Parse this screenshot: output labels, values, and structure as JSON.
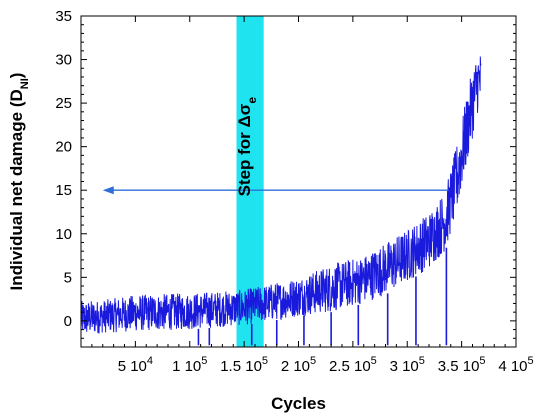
{
  "chart_data": {
    "type": "line",
    "xlabel": "Cycles",
    "ylabel": "Individual net damage (D",
    "ylabel_subscript": "NI",
    "ylabel_close": ")",
    "xlim": [
      0,
      400000
    ],
    "ylim": [
      -3,
      35
    ],
    "grid": false,
    "y_ticks": [
      0,
      5,
      10,
      15,
      20,
      25,
      30,
      35
    ],
    "x_ticks": [
      {
        "value": 50000,
        "mantissa": "5",
        "base": "10",
        "exp": "4"
      },
      {
        "value": 100000,
        "mantissa": "1",
        "base": "10",
        "exp": "5"
      },
      {
        "value": 150000,
        "mantissa": "1.5",
        "base": "10",
        "exp": "5"
      },
      {
        "value": 200000,
        "mantissa": "2",
        "base": "10",
        "exp": "5"
      },
      {
        "value": 250000,
        "mantissa": "2.5",
        "base": "10",
        "exp": "5"
      },
      {
        "value": 300000,
        "mantissa": "3",
        "base": "10",
        "exp": "5"
      },
      {
        "value": 350000,
        "mantissa": "3.5",
        "base": "10",
        "exp": "5"
      },
      {
        "value": 400000,
        "mantissa": "4",
        "base": "10",
        "exp": "5"
      }
    ],
    "band": {
      "x_start": 143000,
      "x_end": 168000,
      "color": "#1fe3ef",
      "label_prefix": "Step for ",
      "label_symbol": "Δσ",
      "label_subscript": "e"
    },
    "arrow": {
      "x_from": 338000,
      "x_to": 20000,
      "y": 15,
      "color": "#2e6fd8"
    },
    "series": [
      {
        "color": "#1a1adc",
        "envelope": {
          "x": [
            0,
            20000,
            50000,
            100000,
            150000,
            200000,
            230000,
            260000,
            280000,
            300000,
            320000,
            335000,
            340000,
            345000,
            350000,
            355000,
            360000,
            365000
          ],
          "low": [
            -1.8,
            -1.4,
            -1.2,
            -1.0,
            -0.5,
            0.5,
            1.0,
            2.0,
            3.0,
            4.5,
            6.0,
            8.0,
            10.0,
            12.0,
            15.0,
            18.0,
            21.0,
            24.0
          ],
          "high": [
            2.3,
            2.4,
            3.0,
            3.2,
            3.6,
            5.0,
            6.5,
            7.5,
            9.0,
            10.5,
            12.5,
            15.0,
            17.5,
            20.0,
            23.0,
            26.0,
            29.0,
            31.0
          ]
        },
        "dips": [
          {
            "x": 108000,
            "y": -2.8
          },
          {
            "x": 118000,
            "y": -2.8
          },
          {
            "x": 157000,
            "y": -2.8
          },
          {
            "x": 180000,
            "y": -2.8
          },
          {
            "x": 205000,
            "y": -2.8
          },
          {
            "x": 230000,
            "y": -2.8
          },
          {
            "x": 255000,
            "y": -2.8
          },
          {
            "x": 282000,
            "y": -2.8
          },
          {
            "x": 308000,
            "y": -2.8
          },
          {
            "x": 336000,
            "y": -2.8
          }
        ],
        "end": {
          "x": 368000
        }
      }
    ]
  }
}
